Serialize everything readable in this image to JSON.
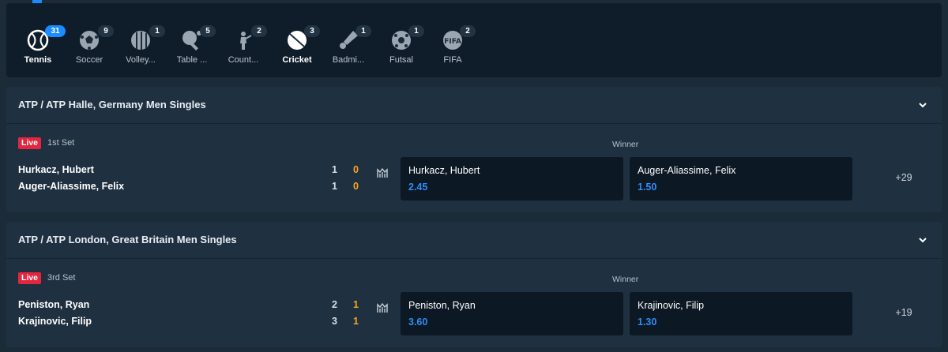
{
  "sports": [
    {
      "name": "Tennis",
      "count": "31",
      "icon": "tennis-ball-icon"
    },
    {
      "name": "Soccer",
      "count": "9",
      "icon": "soccer-ball-icon"
    },
    {
      "name": "Volley...",
      "count": "1",
      "icon": "volleyball-icon"
    },
    {
      "name": "Table ...",
      "count": "5",
      "icon": "table-tennis-icon"
    },
    {
      "name": "Count...",
      "count": "2",
      "icon": "soldier-icon"
    },
    {
      "name": "Cricket",
      "count": "3",
      "icon": "cricket-ball-icon"
    },
    {
      "name": "Badmi...",
      "count": "1",
      "icon": "shuttlecock-icon"
    },
    {
      "name": "Futsal",
      "count": "1",
      "icon": "futsal-ball-icon"
    },
    {
      "name": "FIFA",
      "count": "2",
      "icon": "fifa-icon"
    }
  ],
  "events": [
    {
      "league": "ATP / ATP Halle, Germany Men Singles",
      "status": "Live",
      "period": "1st Set",
      "market": "Winner",
      "team1": "Hurkacz, Hubert",
      "team2": "Auger-Aliassime, Felix",
      "set1": "1",
      "game1": "0",
      "set2": "1",
      "game2": "0",
      "odds": [
        {
          "name": "Hurkacz, Hubert",
          "price": "2.45"
        },
        {
          "name": "Auger-Aliassime, Felix",
          "price": "1.50"
        }
      ],
      "more": "+29"
    },
    {
      "league": "ATP / ATP London, Great Britain Men Singles",
      "status": "Live",
      "period": "3rd Set",
      "market": "Winner",
      "team1": "Peniston, Ryan",
      "team2": "Krajinovic, Filip",
      "set1": "2",
      "game1": "1",
      "set2": "3",
      "game2": "1",
      "odds": [
        {
          "name": "Peniston, Ryan",
          "price": "3.60"
        },
        {
          "name": "Krajinovic, Filip",
          "price": "1.30"
        }
      ],
      "more": "+19"
    }
  ],
  "colors": {
    "accent": "#1a8cff",
    "live": "#e2263f",
    "odds": "#2f8df6",
    "score": "#f5a623"
  }
}
